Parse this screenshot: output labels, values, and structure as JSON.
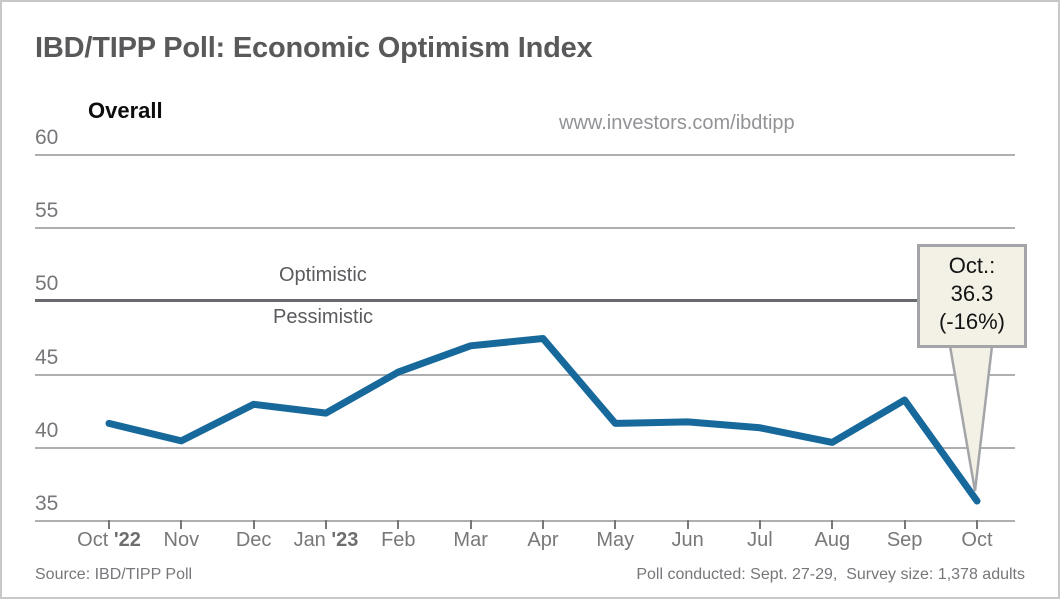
{
  "header": {
    "title": "IBD/TIPP Poll: Economic Optimism Index",
    "series_label": "Overall",
    "url": "www.investors.com/ibdtipp"
  },
  "chart_data": {
    "type": "line",
    "title": "IBD/TIPP Poll: Economic Optimism Index",
    "categories": [
      "Oct '22",
      "Nov",
      "Dec",
      "Jan '23",
      "Feb",
      "Mar",
      "Apr",
      "May",
      "Jun",
      "Jul",
      "Aug",
      "Sep",
      "Oct"
    ],
    "series": [
      {
        "name": "Overall",
        "values": [
          41.6,
          40.4,
          42.9,
          42.3,
          45.1,
          46.9,
          47.4,
          41.6,
          41.7,
          41.3,
          40.3,
          43.2,
          36.3
        ]
      }
    ],
    "ylim": [
      35,
      60
    ],
    "yticks": [
      60,
      55,
      50,
      45,
      40,
      35
    ],
    "grid": "horizontal",
    "legend_position": "none",
    "line_color": "#17699c",
    "threshold": {
      "value": 50,
      "above_label": "Optimistic",
      "below_label": "Pessimistic"
    }
  },
  "callout": {
    "lines": [
      "Oct.:",
      "36.3",
      "(-16%)"
    ],
    "colors": {
      "background": "#f3f0e5",
      "border": "#a3a5a8"
    }
  },
  "footer": {
    "source": "Source: IBD/TIPP Poll",
    "conducted": "Poll conducted: Sept. 27-29,  Survey size: 1,378 adults"
  }
}
